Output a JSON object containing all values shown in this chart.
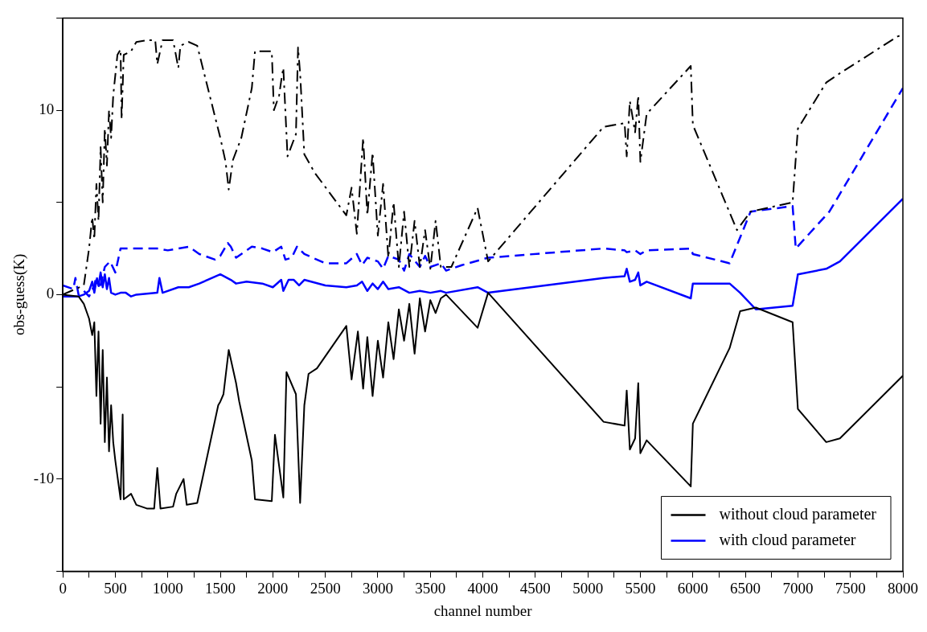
{
  "chart_data": {
    "type": "line",
    "xlabel": "channel number",
    "ylabel": "obs-guess(K)",
    "xlim": [
      0,
      8000
    ],
    "ylim": [
      -15,
      15
    ],
    "xticks": [
      0,
      {
        "value": 250,
        "label": null
      },
      500,
      {
        "value": 750,
        "label": null
      },
      1000,
      {
        "value": 1250,
        "label": null
      },
      1500,
      {
        "value": 1750,
        "label": null
      },
      2000,
      {
        "value": 2250,
        "label": null
      },
      2500,
      {
        "value": 2750,
        "label": null
      },
      3000,
      {
        "value": 3250,
        "label": null
      },
      3500,
      {
        "value": 3750,
        "label": null
      },
      4000,
      {
        "value": 4250,
        "label": null
      },
      4500,
      {
        "value": 4750,
        "label": null
      },
      5000,
      {
        "value": 5250,
        "label": null
      },
      5500,
      {
        "value": 5750,
        "label": null
      },
      6000,
      {
        "value": 6250,
        "label": null
      },
      6500,
      {
        "value": 6750,
        "label": null
      },
      7000,
      {
        "value": 7250,
        "label": null
      },
      7500,
      {
        "value": 7750,
        "label": null
      },
      8000
    ],
    "yticks": [
      {
        "value": -15,
        "label": null
      },
      -10,
      {
        "value": -5,
        "label": null
      },
      0,
      {
        "value": 5,
        "label": null
      },
      10,
      {
        "value": 15,
        "label": null
      }
    ],
    "grid": false,
    "legend": "bottom right",
    "marker": "none",
    "series": [
      {
        "name": "without cloud parameter",
        "color": "#000000",
        "line_style": "solid",
        "x": [
          0,
          150,
          200,
          250,
          280,
          300,
          320,
          340,
          360,
          380,
          400,
          420,
          440,
          460,
          480,
          500,
          550,
          570,
          580,
          650,
          700,
          800,
          870,
          900,
          930,
          1050,
          1080,
          1150,
          1180,
          1280,
          1480,
          1500,
          1530,
          1580,
          1650,
          1680,
          1800,
          1830,
          1990,
          2020,
          2100,
          2130,
          2220,
          2260,
          2300,
          2340,
          2420,
          2700,
          2750,
          2810,
          2860,
          2900,
          2950,
          3000,
          3050,
          3100,
          3150,
          3200,
          3250,
          3300,
          3350,
          3400,
          3450,
          3500,
          3550,
          3600,
          3650,
          3950,
          4050,
          5150,
          5350,
          5370,
          5400,
          5450,
          5480,
          5500,
          5560,
          5980,
          6000,
          6350,
          6450,
          6600,
          6950,
          7000,
          7270,
          7400,
          8000
        ],
        "values": [
          0,
          -0.1,
          -0.5,
          -1.3,
          -2.2,
          -1.5,
          -5.5,
          -2,
          -7,
          -3,
          -8,
          -4.5,
          -8.5,
          -6,
          -8,
          -9,
          -11.1,
          -6.5,
          -11.1,
          -10.8,
          -11.4,
          -11.6,
          -11.6,
          -9.4,
          -11.6,
          -11.5,
          -10.8,
          -10,
          -11.4,
          -11.3,
          -6,
          -5.8,
          -5.4,
          -3,
          -4.8,
          -5.8,
          -9,
          -11.1,
          -11.2,
          -7.6,
          -11,
          -4.2,
          -5.4,
          -11.3,
          -6,
          -4.3,
          -4,
          -1.7,
          -4.6,
          -2,
          -5.1,
          -2.3,
          -5.5,
          -2.5,
          -4.5,
          -1.5,
          -3.5,
          -0.8,
          -2.5,
          -0.5,
          -3.2,
          -0.2,
          -2,
          -0.3,
          -1,
          -0.2,
          0,
          -1.8,
          0.1,
          -6.9,
          -7.1,
          -5.2,
          -8.4,
          -7.8,
          -4.8,
          -8.6,
          -7.9,
          -10.4,
          -7,
          -2.9,
          -0.9,
          -0.7,
          -1.5,
          -6.2,
          -8,
          -7.8,
          -4.4
        ]
      },
      {
        "color": "#000000",
        "line_style": "dashdot",
        "x": [
          0,
          200,
          250,
          280,
          300,
          320,
          340,
          360,
          380,
          400,
          420,
          440,
          460,
          480,
          520,
          550,
          560,
          580,
          650,
          700,
          800,
          880,
          900,
          950,
          1050,
          1100,
          1120,
          1200,
          1280,
          1500,
          1550,
          1580,
          1620,
          1700,
          1800,
          1830,
          1990,
          2010,
          2060,
          2080,
          2100,
          2140,
          2220,
          2240,
          2260,
          2300,
          2400,
          2700,
          2750,
          2800,
          2860,
          2900,
          2950,
          3000,
          3050,
          3100,
          3150,
          3200,
          3250,
          3300,
          3350,
          3400,
          3450,
          3500,
          3550,
          3600,
          3700,
          3950,
          4050,
          5150,
          5350,
          5370,
          5400,
          5450,
          5480,
          5500,
          5560,
          5980,
          6000,
          6280,
          6420,
          6550,
          6950,
          7000,
          7270,
          7400,
          7950,
          8000
        ],
        "values": [
          0,
          0.5,
          2.5,
          4.2,
          3,
          6,
          4,
          8,
          5,
          9,
          7,
          10,
          8.5,
          10.8,
          13,
          13.3,
          9.5,
          13,
          13.2,
          13.7,
          13.8,
          13.8,
          12.5,
          13.8,
          13.8,
          12.3,
          13.5,
          13.7,
          13.5,
          8.5,
          7.2,
          5.7,
          7.3,
          8.5,
          11.2,
          13.2,
          13.2,
          10,
          10.8,
          11.6,
          12.3,
          7.5,
          8.7,
          13.4,
          12,
          7.6,
          6.6,
          4.3,
          5.8,
          3.3,
          8.5,
          4.3,
          7.7,
          3.2,
          6,
          2,
          5,
          1.5,
          4.5,
          1.5,
          4,
          1.5,
          3.5,
          1.4,
          4,
          1.5,
          1.5,
          4.7,
          1.8,
          9.1,
          9.3,
          7.5,
          10.5,
          8.8,
          10.8,
          7.2,
          9.8,
          12.4,
          9.2,
          5.4,
          3.5,
          4.5,
          5,
          9,
          11.5,
          12,
          14,
          14.1
        ]
      },
      {
        "name": "with cloud parameter",
        "color": "#0000ff",
        "line_style": "solid",
        "x": [
          0,
          150,
          200,
          250,
          280,
          300,
          320,
          340,
          360,
          380,
          400,
          420,
          440,
          460,
          500,
          550,
          600,
          650,
          700,
          900,
          920,
          950,
          1100,
          1200,
          1300,
          1500,
          1600,
          1650,
          1750,
          1900,
          2000,
          2080,
          2100,
          2150,
          2200,
          2250,
          2300,
          2500,
          2700,
          2800,
          2850,
          2900,
          2950,
          3000,
          3050,
          3100,
          3200,
          3300,
          3400,
          3500,
          3600,
          3650,
          3950,
          4050,
          5150,
          5350,
          5370,
          5400,
          5450,
          5480,
          5500,
          5560,
          5980,
          6000,
          6350,
          6450,
          6600,
          6950,
          7000,
          7270,
          7400,
          8000
        ],
        "values": [
          -0.1,
          -0.1,
          0,
          0.2,
          0.7,
          0.1,
          0.8,
          0.5,
          1.2,
          0.4,
          1.1,
          0.3,
          0.9,
          0.1,
          0,
          0.1,
          0.1,
          -0.1,
          0,
          0.1,
          0.9,
          0.1,
          0.4,
          0.4,
          0.6,
          1.1,
          0.8,
          0.6,
          0.7,
          0.6,
          0.4,
          0.8,
          0.2,
          0.8,
          0.8,
          0.5,
          0.8,
          0.5,
          0.4,
          0.5,
          0.7,
          0.2,
          0.6,
          0.3,
          0.7,
          0.3,
          0.4,
          0.1,
          0.2,
          0.1,
          0.2,
          0.1,
          0.4,
          0.1,
          0.9,
          1,
          1.4,
          0.7,
          0.8,
          1.2,
          0.5,
          0.7,
          -0.2,
          0.6,
          0.6,
          0.1,
          -0.8,
          -0.6,
          1.1,
          1.4,
          1.8,
          5.2
        ]
      },
      {
        "color": "#0000ff",
        "line_style": "dashed",
        "x": [
          0,
          100,
          120,
          150,
          200,
          250,
          300,
          320,
          350,
          400,
          450,
          500,
          550,
          650,
          800,
          900,
          1000,
          1100,
          1200,
          1300,
          1450,
          1500,
          1570,
          1600,
          1650,
          1800,
          1900,
          2000,
          2080,
          2120,
          2180,
          2230,
          2300,
          2500,
          2700,
          2800,
          2850,
          2900,
          3000,
          3050,
          3100,
          3200,
          3250,
          3300,
          3400,
          3450,
          3500,
          3600,
          3650,
          3800,
          4050,
          5150,
          5350,
          5370,
          5450,
          5500,
          5560,
          5980,
          6000,
          6350,
          6550,
          6950,
          6980,
          7300,
          8000
        ],
        "values": [
          0.5,
          0.3,
          0.9,
          0,
          0.2,
          -0.1,
          0.5,
          1,
          0.3,
          1.5,
          1.8,
          1.2,
          2.5,
          2.5,
          2.5,
          2.5,
          2.4,
          2.5,
          2.6,
          2.2,
          1.9,
          2.1,
          2.8,
          2.6,
          2,
          2.6,
          2.5,
          2.3,
          2.6,
          1.9,
          2,
          2.6,
          2.2,
          1.7,
          1.7,
          2.2,
          1.6,
          2,
          1.8,
          1.4,
          2.1,
          1.9,
          1.3,
          2.2,
          1.5,
          2.1,
          1.5,
          1.7,
          1.3,
          1.6,
          2,
          2.5,
          2.4,
          2.3,
          2.4,
          2.2,
          2.4,
          2.5,
          2.2,
          1.7,
          4.5,
          4.8,
          2.5,
          4.5,
          11.2
        ]
      }
    ]
  }
}
